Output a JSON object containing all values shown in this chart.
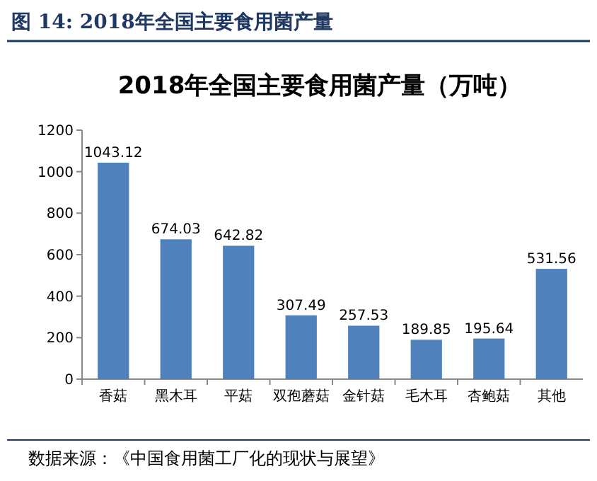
{
  "chart_data": {
    "type": "bar",
    "title": "2018年全国主要食用菌产量（万吨）",
    "annotations": [
      "图 14: 2018年全国主要食用菌产量",
      "数据来源：《中国食用菌工厂化的现状与展望》"
    ],
    "categories": [
      "香菇",
      "黑木耳",
      "平菇",
      "双孢蘑菇",
      "金针菇",
      "毛木耳",
      "杏鲍菇",
      "其他"
    ],
    "values": [
      1043.12,
      674.03,
      642.82,
      307.49,
      257.53,
      189.85,
      195.64,
      531.56
    ],
    "color": "#4f81bd",
    "ylim": [
      0,
      1200
    ],
    "yticks": [
      0,
      200,
      400,
      600,
      800,
      1000,
      1200
    ],
    "data_labels": true,
    "grid": false
  }
}
